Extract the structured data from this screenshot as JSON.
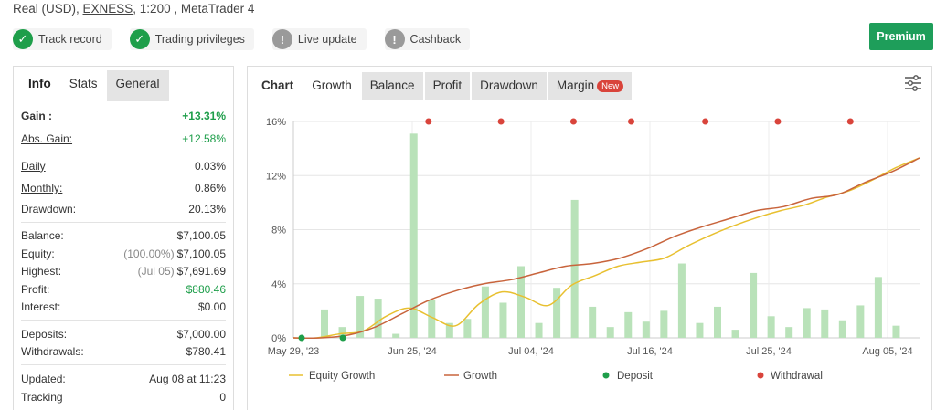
{
  "header": {
    "account_prefix": "Real (USD), ",
    "broker": "EXNESS",
    "account_suffix": ", 1:200 , MetaTrader 4"
  },
  "badges": [
    {
      "label": "Track record",
      "icon": "check-icon",
      "status": "verified"
    },
    {
      "label": "Trading privileges",
      "icon": "check-icon",
      "status": "verified"
    },
    {
      "label": "Live update",
      "icon": "exclamation-icon",
      "status": "unverified"
    },
    {
      "label": "Cashback",
      "icon": "exclamation-icon",
      "status": "unverified"
    }
  ],
  "premium_label": "Premium",
  "left_tabs": [
    "Info",
    "Stats",
    "General"
  ],
  "stats": {
    "gain": {
      "label": "Gain :",
      "value": "+13.31%"
    },
    "abs_gain": {
      "label": "Abs. Gain:",
      "value": "+12.58%"
    },
    "daily": {
      "label": "Daily",
      "value": "0.03%"
    },
    "monthly": {
      "label": "Monthly:",
      "value": "0.86%"
    },
    "drawdown": {
      "label": "Drawdown:",
      "value": "20.13%"
    },
    "balance": {
      "label": "Balance:",
      "value": "$7,100.05"
    },
    "equity": {
      "label": "Equity:",
      "sub": "(100.00%)",
      "value": "$7,100.05"
    },
    "highest": {
      "label": "Highest:",
      "sub": "(Jul 05)",
      "value": "$7,691.69"
    },
    "profit": {
      "label": "Profit:",
      "value": "$880.46"
    },
    "interest": {
      "label": "Interest:",
      "value": "$0.00"
    },
    "deposits": {
      "label": "Deposits:",
      "value": "$7,000.00"
    },
    "withdrawals": {
      "label": "Withdrawals:",
      "value": "$780.41"
    },
    "updated": {
      "label": "Updated:",
      "value": "Aug 08 at 11:23"
    },
    "tracking": {
      "label": "Tracking",
      "value": "0"
    }
  },
  "right_tabs": {
    "chart": "Chart",
    "growth": "Growth",
    "balance": "Balance",
    "profit": "Profit",
    "drawdown": "Drawdown",
    "margin": "Margin",
    "new_badge": "New"
  },
  "colors": {
    "bar": "#b9e2b9",
    "growth": "#c8643c",
    "equity": "#e8c030",
    "deposit": "#1e9e4a",
    "withdrawal": "#d9443b"
  },
  "chart_data": {
    "type": "bar",
    "yticks": [
      "0%",
      "4%",
      "8%",
      "12%",
      "16%"
    ],
    "ylim": [
      0,
      16
    ],
    "xticks": [
      "May 29, '23",
      "Jun 25, '24",
      "Jul 04, '24",
      "Jul 16, '24",
      "Jul 25, '24",
      "Aug 05, '24"
    ],
    "legend": {
      "equity": "Equity Growth",
      "growth": "Growth",
      "deposit": "Deposit",
      "withdrawal": "Withdrawal"
    },
    "bars": [
      2.1,
      0.8,
      3.1,
      2.9,
      0.3,
      15.1,
      2.8,
      1.1,
      1.4,
      3.8,
      2.6,
      5.3,
      1.1,
      3.7,
      10.2,
      2.3,
      0.8,
      1.9,
      1.2,
      2.0,
      5.5,
      1.1,
      2.3,
      0.6,
      4.8,
      1.6,
      0.8,
      2.2,
      2.1,
      1.3,
      2.4,
      4.5,
      0.9
    ],
    "growth": [
      0,
      0,
      0.2,
      0.8,
      1.8,
      2.8,
      3.5,
      4.0,
      4.3,
      4.8,
      5.3,
      5.5,
      5.9,
      6.6,
      7.5,
      8.2,
      8.8,
      9.4,
      9.7,
      10.3,
      10.6,
      11.5,
      12.3,
      13.3
    ],
    "equity": [
      0,
      0,
      0.3,
      0.5,
      1.6,
      2.2,
      1.5,
      0.9,
      2.5,
      3.4,
      3.0,
      2.4,
      3.9,
      4.6,
      5.3,
      5.6,
      5.9,
      6.8,
      7.6,
      8.3,
      8.9,
      9.4,
      9.8,
      10.4,
      10.9,
      11.7,
      12.6,
      13.3
    ],
    "deposits": [
      0.5,
      3.0
    ],
    "withdrawals": [
      8.2,
      12.6,
      17.0,
      20.5,
      25.0,
      29.4,
      33.8
    ]
  }
}
